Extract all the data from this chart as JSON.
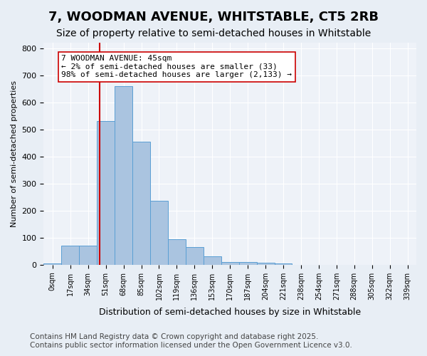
{
  "title": "7, WOODMAN AVENUE, WHITSTABLE, CT5 2RB",
  "subtitle": "Size of property relative to semi-detached houses in Whitstable",
  "xlabel": "Distribution of semi-detached houses by size in Whitstable",
  "ylabel": "Number of semi-detached properties",
  "bins": [
    "0sqm",
    "17sqm",
    "34sqm",
    "51sqm",
    "68sqm",
    "85sqm",
    "102sqm",
    "119sqm",
    "136sqm",
    "153sqm",
    "170sqm",
    "187sqm",
    "204sqm",
    "221sqm",
    "238sqm",
    "254sqm",
    "271sqm",
    "288sqm",
    "305sqm",
    "322sqm",
    "339sqm"
  ],
  "bar_values": [
    5,
    70,
    70,
    530,
    660,
    455,
    237,
    95,
    65,
    30,
    10,
    10,
    8,
    5,
    0,
    0,
    0,
    0,
    0,
    0,
    0
  ],
  "bar_color": "#aac4e0",
  "bar_edge_color": "#5a9fd4",
  "vline_x": 2.65,
  "vline_color": "#cc0000",
  "annotation_text": "7 WOODMAN AVENUE: 45sqm\n← 2% of semi-detached houses are smaller (33)\n98% of semi-detached houses are larger (2,133) →",
  "annotation_box_color": "#ffffff",
  "annotation_box_edge": "#cc0000",
  "ylim": [
    0,
    820
  ],
  "yticks": [
    0,
    100,
    200,
    300,
    400,
    500,
    600,
    700,
    800
  ],
  "footer_line1": "Contains HM Land Registry data © Crown copyright and database right 2025.",
  "footer_line2": "Contains public sector information licensed under the Open Government Licence v3.0.",
  "bg_color": "#e8eef5",
  "plot_bg_color": "#eef2f8",
  "title_fontsize": 13,
  "subtitle_fontsize": 10,
  "footer_fontsize": 7.5,
  "annotation_fontsize": 8
}
